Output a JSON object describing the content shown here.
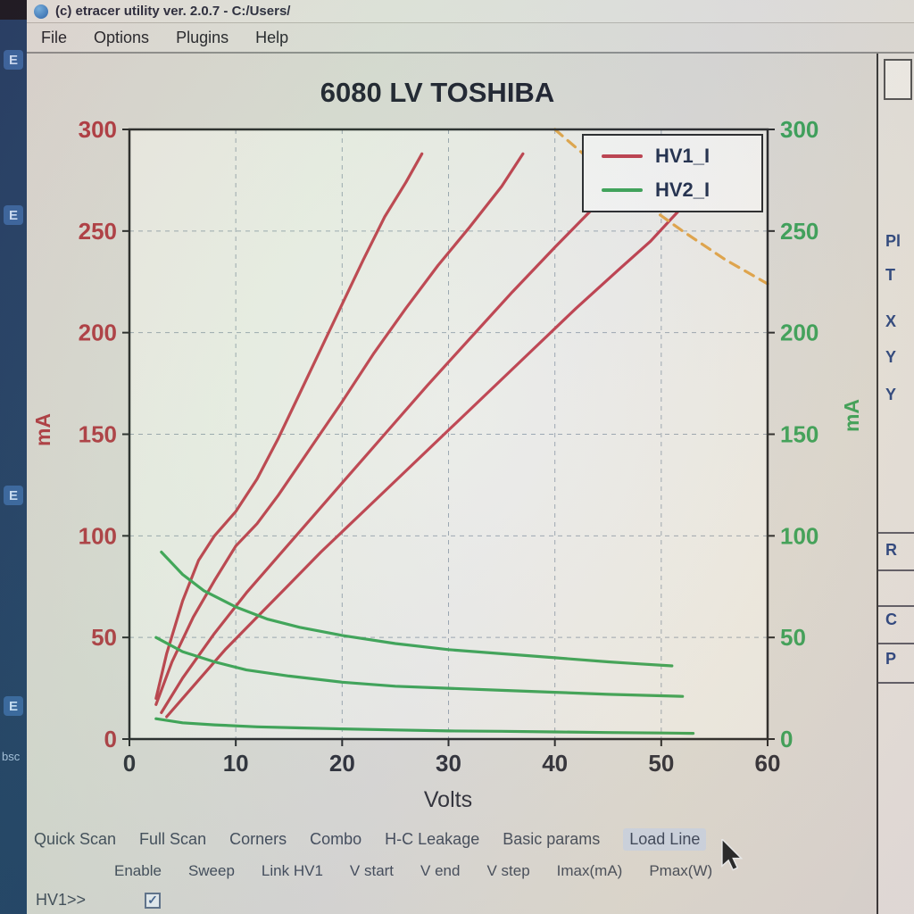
{
  "window": {
    "title": "(c) etracer utility ver. 2.0.7 - C:/Users/",
    "menu": [
      "File",
      "Options",
      "Plugins",
      "Help"
    ]
  },
  "left_strip": {
    "icon_labels": [
      "E",
      "E",
      "E",
      "E"
    ],
    "bottom_label": "bsc"
  },
  "right_panel": {
    "labels": [
      "Pl",
      "T",
      "X",
      "Y",
      "Y",
      "R",
      "C",
      "P"
    ]
  },
  "tabs": [
    {
      "label": "Quick Scan",
      "active": false
    },
    {
      "label": "Full Scan",
      "active": false
    },
    {
      "label": "Corners",
      "active": false
    },
    {
      "label": "Combo",
      "active": false
    },
    {
      "label": "H-C Leakage",
      "active": false
    },
    {
      "label": "Basic params",
      "active": false
    },
    {
      "label": "Load Line",
      "active": true
    }
  ],
  "params_row": [
    "Enable",
    "Sweep",
    "Link HV1",
    "V start",
    "V end",
    "V step",
    "Imax(mA)",
    "Pmax(W)"
  ],
  "bottom": {
    "hv1_label": "HV1>>",
    "hv1_checked": true
  },
  "chart_data": {
    "type": "line",
    "title": "6080 LV TOSHIBA",
    "xlabel": "Volts",
    "ylabel_left": "mA",
    "ylabel_right": "mA",
    "xlim": [
      0,
      60
    ],
    "ylim": [
      0,
      300
    ],
    "xticks": [
      0,
      10,
      20,
      30,
      40,
      50,
      60
    ],
    "yticks": [
      0,
      50,
      100,
      150,
      200,
      250,
      300
    ],
    "grid": true,
    "legend_position": "upper right",
    "legend_entries": [
      {
        "label": "HV1_I",
        "color": "#bf3440"
      },
      {
        "label": "HV2_I",
        "color": "#33a04a"
      }
    ],
    "axis_colors": {
      "left": "#b03038",
      "right": "#2f9e4f",
      "x": "#23232b"
    },
    "series": [
      {
        "name": "HV1_I curve 1",
        "color": "#bf3440",
        "points": [
          [
            2.5,
            20
          ],
          [
            3.5,
            42
          ],
          [
            5,
            68
          ],
          [
            6.5,
            88
          ],
          [
            8,
            100
          ],
          [
            10,
            112
          ],
          [
            12,
            128
          ],
          [
            14,
            148
          ],
          [
            16,
            170
          ],
          [
            18,
            192
          ],
          [
            20,
            214
          ],
          [
            22,
            236
          ],
          [
            24,
            257
          ],
          [
            26,
            274
          ],
          [
            27.5,
            288
          ]
        ]
      },
      {
        "name": "HV1_I curve 2",
        "color": "#bf3440",
        "points": [
          [
            2.5,
            17
          ],
          [
            4,
            38
          ],
          [
            6,
            60
          ],
          [
            8,
            78
          ],
          [
            10,
            95
          ],
          [
            12,
            106
          ],
          [
            14,
            120
          ],
          [
            17,
            143
          ],
          [
            20,
            166
          ],
          [
            23,
            190
          ],
          [
            26,
            212
          ],
          [
            29,
            233
          ],
          [
            32,
            252
          ],
          [
            35,
            272
          ],
          [
            37,
            288
          ]
        ]
      },
      {
        "name": "HV1_I curve 3",
        "color": "#bf3440",
        "points": [
          [
            3,
            13
          ],
          [
            5,
            30
          ],
          [
            8,
            52
          ],
          [
            11,
            72
          ],
          [
            14,
            90
          ],
          [
            17,
            108
          ],
          [
            20,
            126
          ],
          [
            24,
            150
          ],
          [
            28,
            174
          ],
          [
            32,
            197
          ],
          [
            36,
            220
          ],
          [
            40,
            242
          ],
          [
            43,
            258
          ],
          [
            44.5,
            266
          ]
        ]
      },
      {
        "name": "HV1_I curve 4",
        "color": "#bf3440",
        "points": [
          [
            3.5,
            11
          ],
          [
            6,
            26
          ],
          [
            9,
            44
          ],
          [
            12,
            60
          ],
          [
            15,
            76
          ],
          [
            18,
            92
          ],
          [
            22,
            112
          ],
          [
            26,
            132
          ],
          [
            30,
            152
          ],
          [
            34,
            172
          ],
          [
            38,
            192
          ],
          [
            42,
            212
          ],
          [
            46,
            231
          ],
          [
            49,
            245
          ],
          [
            52,
            262
          ]
        ]
      },
      {
        "name": "HV2_I curve 1",
        "color": "#33a04a",
        "points": [
          [
            3,
            92
          ],
          [
            5,
            81
          ],
          [
            7,
            73
          ],
          [
            10,
            65
          ],
          [
            13,
            59
          ],
          [
            16,
            55
          ],
          [
            20,
            51
          ],
          [
            25,
            47
          ],
          [
            30,
            44
          ],
          [
            35,
            42
          ],
          [
            40,
            40
          ],
          [
            45,
            38
          ],
          [
            48,
            37
          ],
          [
            51,
            36
          ]
        ]
      },
      {
        "name": "HV2_I curve 2",
        "color": "#33a04a",
        "points": [
          [
            2.5,
            50
          ],
          [
            5,
            43
          ],
          [
            8,
            38
          ],
          [
            11,
            34
          ],
          [
            15,
            31
          ],
          [
            20,
            28
          ],
          [
            25,
            26
          ],
          [
            30,
            25
          ],
          [
            35,
            24
          ],
          [
            40,
            23
          ],
          [
            45,
            22
          ],
          [
            52,
            21
          ]
        ]
      },
      {
        "name": "HV2_I curve 3",
        "color": "#33a04a",
        "points": [
          [
            2.5,
            10
          ],
          [
            5,
            8
          ],
          [
            8,
            7
          ],
          [
            12,
            6
          ],
          [
            16,
            5.5
          ],
          [
            20,
            5
          ],
          [
            25,
            4.5
          ],
          [
            30,
            4
          ],
          [
            35,
            3.8
          ],
          [
            40,
            3.5
          ],
          [
            45,
            3.2
          ],
          [
            50,
            3
          ],
          [
            53,
            2.8
          ]
        ]
      },
      {
        "name": "load line",
        "color": "#e5a23c",
        "dash": "11 8",
        "points": [
          [
            40,
            300
          ],
          [
            44,
            282
          ],
          [
            48,
            265
          ],
          [
            52,
            250
          ],
          [
            56,
            236
          ],
          [
            60,
            224
          ]
        ]
      }
    ]
  }
}
